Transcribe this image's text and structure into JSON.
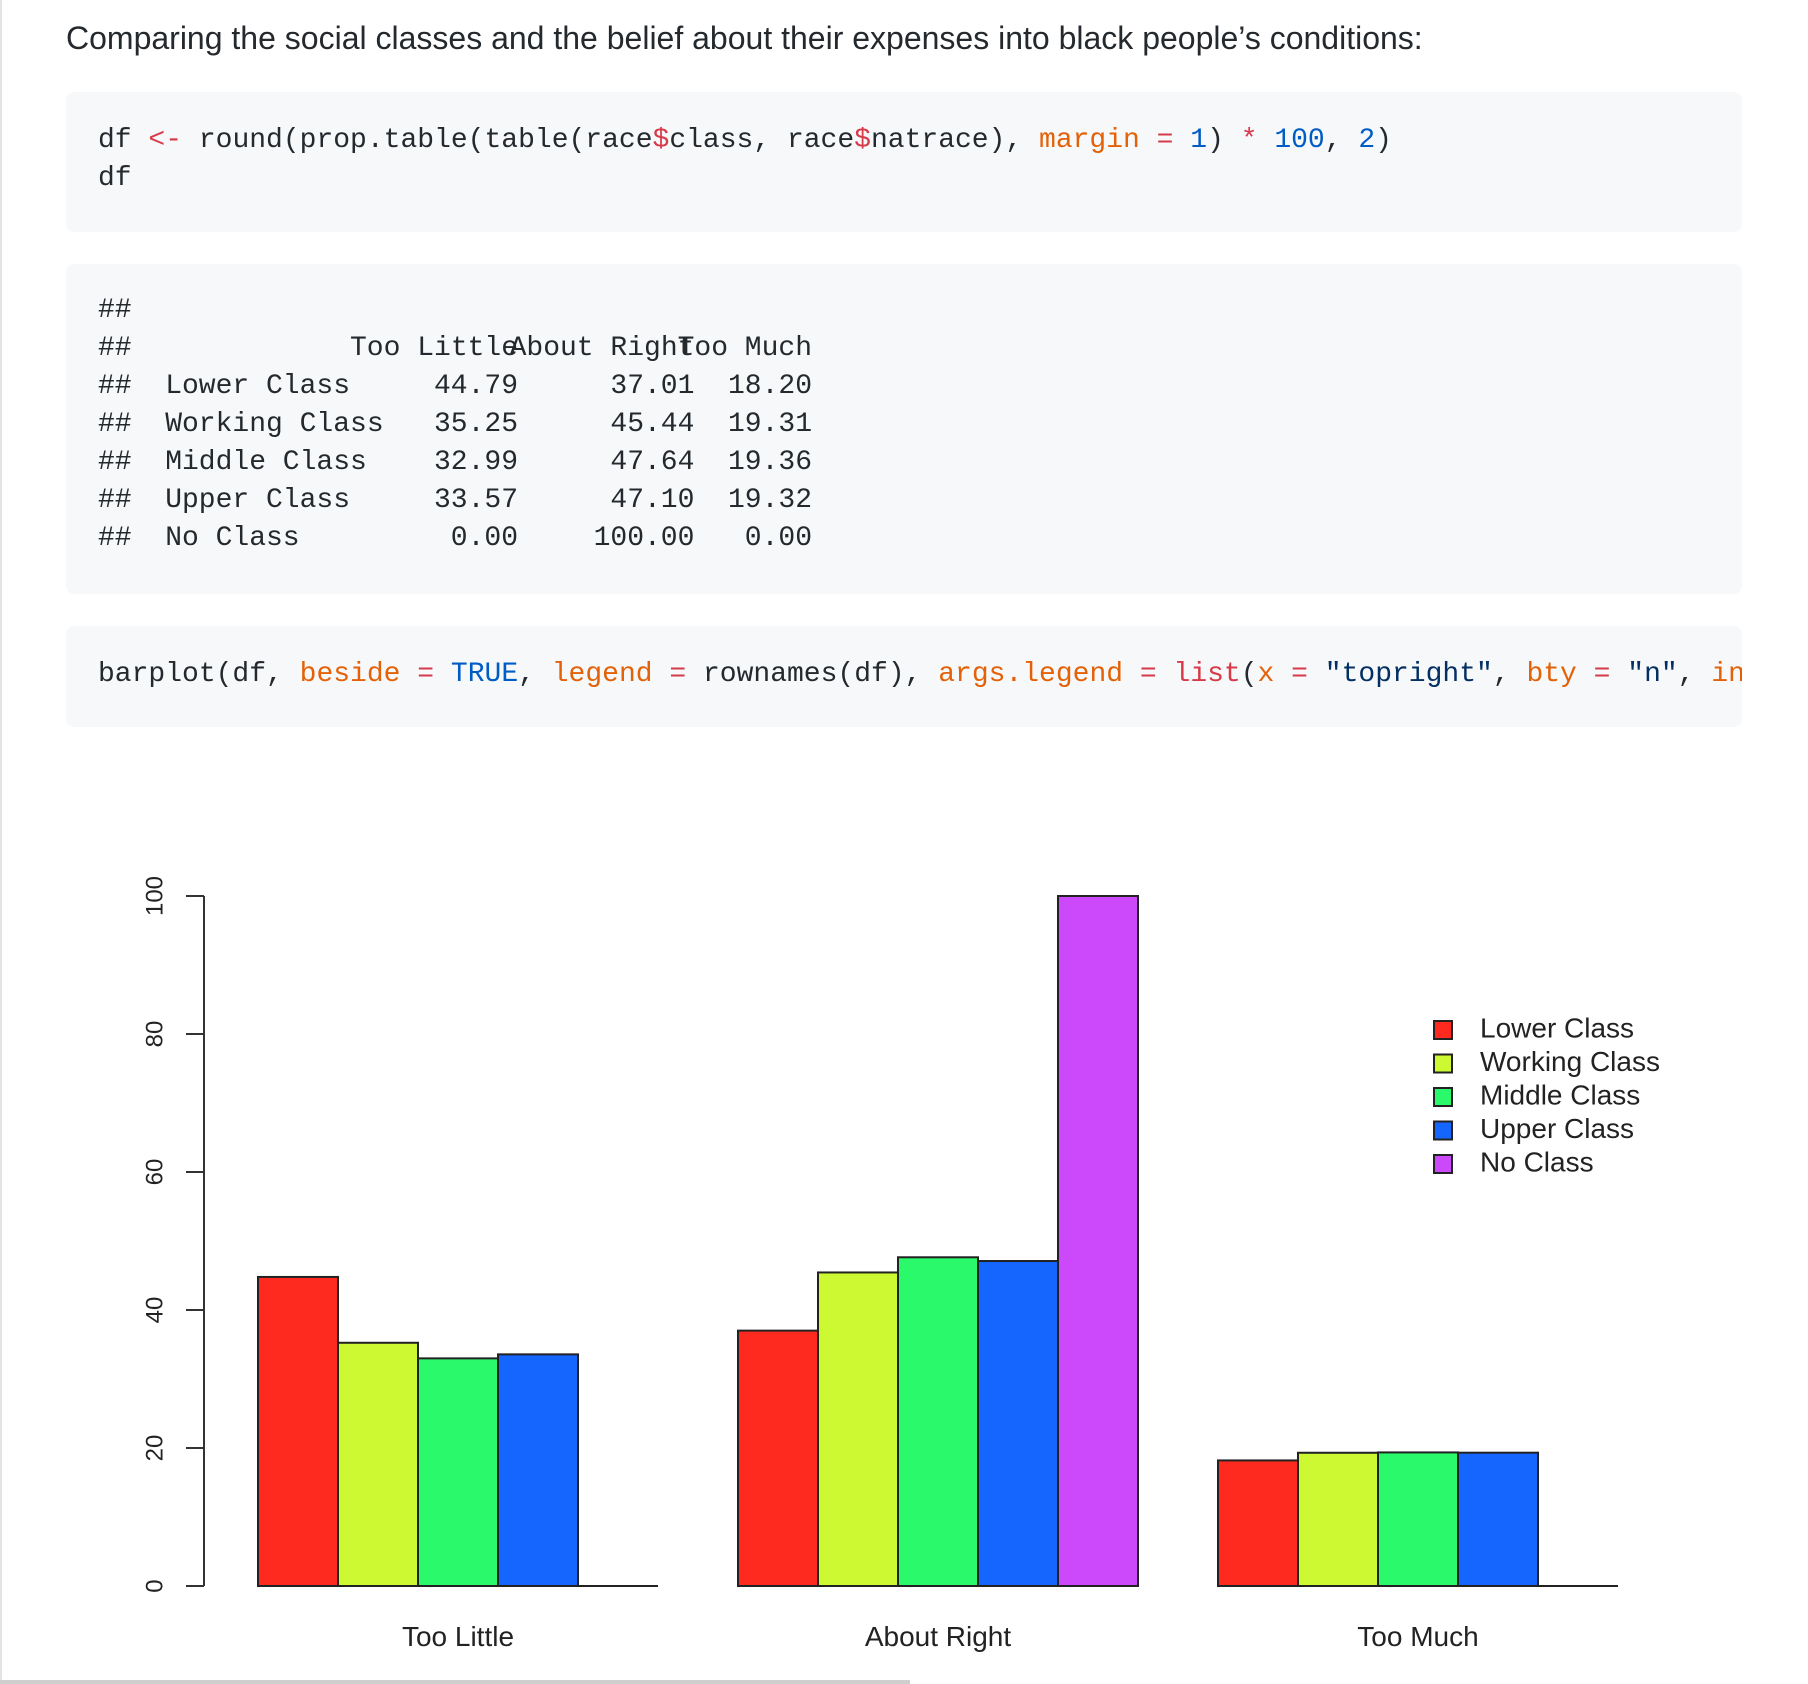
{
  "intro_text": "Comparing the social classes and the belief about their expenses into black people’s conditions:",
  "code_df": {
    "line1": [
      {
        "t": "df ",
        "c": ""
      },
      {
        "t": "<-",
        "c": "op"
      },
      {
        "t": " round(prop.table(table(race",
        "c": ""
      },
      {
        "t": "$",
        "c": "op"
      },
      {
        "t": "class, race",
        "c": ""
      },
      {
        "t": "$",
        "c": "op"
      },
      {
        "t": "natrace), ",
        "c": ""
      },
      {
        "t": "margin",
        "c": "arg"
      },
      {
        "t": " ",
        "c": ""
      },
      {
        "t": "=",
        "c": "op"
      },
      {
        "t": " ",
        "c": ""
      },
      {
        "t": "1",
        "c": "num"
      },
      {
        "t": ") ",
        "c": ""
      },
      {
        "t": "*",
        "c": "op"
      },
      {
        "t": " ",
        "c": ""
      },
      {
        "t": "100",
        "c": "num"
      },
      {
        "t": ", ",
        "c": ""
      },
      {
        "t": "2",
        "c": "num"
      },
      {
        "t": ")",
        "c": ""
      }
    ],
    "line2": "df"
  },
  "output": {
    "prefix": "##",
    "columns": [
      "Too Little",
      "About Right",
      "Too Much"
    ],
    "rows": [
      {
        "label": "Lower Class",
        "values": [
          "44.79",
          "37.01",
          "18.20"
        ]
      },
      {
        "label": "Working Class",
        "values": [
          "35.25",
          "45.44",
          "19.31"
        ]
      },
      {
        "label": "Middle Class",
        "values": [
          "32.99",
          "47.64",
          "19.36"
        ]
      },
      {
        "label": "Upper Class",
        "values": [
          "33.57",
          "47.10",
          "19.32"
        ]
      },
      {
        "label": "No Class",
        "values": [
          "0.00",
          "100.00",
          "0.00"
        ]
      }
    ]
  },
  "code_barplot": [
    {
      "t": "barplot(df, ",
      "c": ""
    },
    {
      "t": "beside",
      "c": "arg"
    },
    {
      "t": " ",
      "c": ""
    },
    {
      "t": "=",
      "c": "op"
    },
    {
      "t": " ",
      "c": ""
    },
    {
      "t": "TRUE",
      "c": "bool"
    },
    {
      "t": ", ",
      "c": ""
    },
    {
      "t": "legend",
      "c": "arg"
    },
    {
      "t": " ",
      "c": ""
    },
    {
      "t": "=",
      "c": "op"
    },
    {
      "t": " rownames(df), ",
      "c": ""
    },
    {
      "t": "args.legend",
      "c": "arg"
    },
    {
      "t": " ",
      "c": ""
    },
    {
      "t": "=",
      "c": "op"
    },
    {
      "t": " ",
      "c": ""
    },
    {
      "t": "list",
      "c": "fn"
    },
    {
      "t": "(",
      "c": ""
    },
    {
      "t": "x",
      "c": "arg"
    },
    {
      "t": " ",
      "c": ""
    },
    {
      "t": "=",
      "c": "op"
    },
    {
      "t": " ",
      "c": ""
    },
    {
      "t": "\"topright\"",
      "c": "str"
    },
    {
      "t": ", ",
      "c": ""
    },
    {
      "t": "bty",
      "c": "arg"
    },
    {
      "t": " ",
      "c": ""
    },
    {
      "t": "=",
      "c": "op"
    },
    {
      "t": " ",
      "c": ""
    },
    {
      "t": "\"n\"",
      "c": "str"
    },
    {
      "t": ", ",
      "c": ""
    },
    {
      "t": "inset",
      "c": "arg"
    }
  ],
  "chart_data": {
    "type": "bar",
    "categories": [
      "Too Little",
      "About Right",
      "Too Much"
    ],
    "series": [
      {
        "name": "Lower Class",
        "values": [
          44.79,
          37.01,
          18.2
        ],
        "color": "#ff2a1f"
      },
      {
        "name": "Working Class",
        "values": [
          35.25,
          45.44,
          19.31
        ],
        "color": "#ccf931"
      },
      {
        "name": "Middle Class",
        "values": [
          32.99,
          47.64,
          19.36
        ],
        "color": "#2af96b"
      },
      {
        "name": "Upper Class",
        "values": [
          33.57,
          47.1,
          19.32
        ],
        "color": "#1565ff"
      },
      {
        "name": "No Class",
        "values": [
          0.0,
          100.0,
          0.0
        ],
        "color": "#cc48fb"
      }
    ],
    "yticks": [
      "0",
      "20",
      "40",
      "60",
      "80",
      "100"
    ],
    "ylim": [
      0,
      100
    ],
    "grouped": true,
    "legend_position": "top-right",
    "grid": false
  }
}
